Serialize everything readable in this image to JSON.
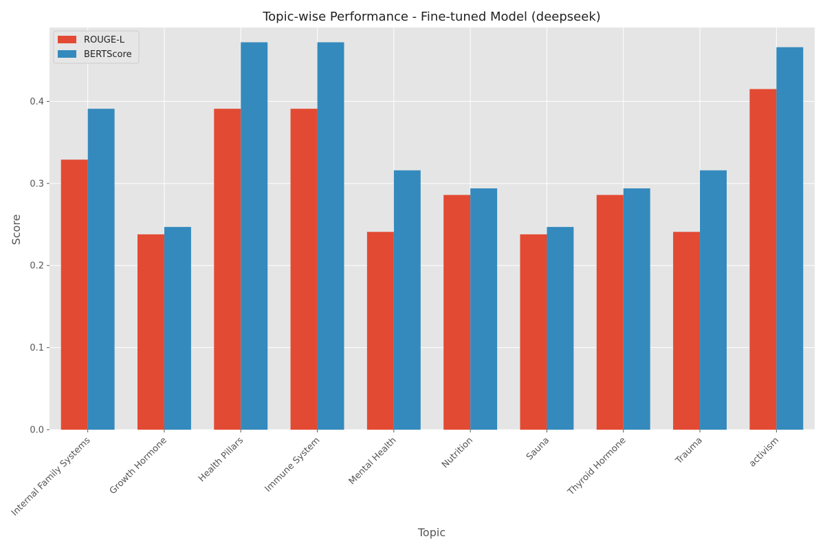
{
  "chart_data": {
    "type": "bar",
    "title": "Topic-wise Performance - Fine-tuned Model (deepseek)",
    "xlabel": "Topic",
    "ylabel": "Score",
    "ylim": [
      0,
      0.49
    ],
    "yticks": [
      "0.0",
      "0.1",
      "0.2",
      "0.3",
      "0.4"
    ],
    "grid": true,
    "legend_position": "top-left",
    "categories": [
      "Internal Family Systems",
      "Growth Hormone",
      "Health Pillars",
      "Immune System",
      "Mental Health",
      "Nutrition",
      "Sauna",
      "Thyroid Hormone",
      "Trauma",
      "activism"
    ],
    "series": [
      {
        "name": "ROUGE-L",
        "color": "#e24a33",
        "values": [
          0.329,
          0.238,
          0.391,
          0.391,
          0.241,
          0.286,
          0.238,
          0.286,
          0.241,
          0.415
        ]
      },
      {
        "name": "BERTScore",
        "color": "#348abd",
        "values": [
          0.391,
          0.247,
          0.472,
          0.472,
          0.316,
          0.294,
          0.247,
          0.294,
          0.316,
          0.466
        ]
      }
    ],
    "background_color": "#e5e5e5",
    "grid_color": "#ffffff"
  }
}
